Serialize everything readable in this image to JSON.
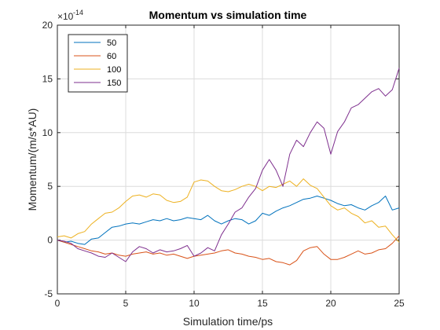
{
  "chart_data": {
    "type": "line",
    "title": "Momentum vs simulation time",
    "xlabel": "Simulation time/ps",
    "ylabel": "Momentum/(m/s*AU)",
    "exponent_base": "×10",
    "exponent_power": "-14",
    "xlim": [
      0,
      25
    ],
    "ylim": [
      -5,
      20
    ],
    "x_ticks": [
      "0",
      "5",
      "10",
      "15",
      "20",
      "25"
    ],
    "y_ticks": [
      "-5",
      "0",
      "5",
      "10",
      "15",
      "20"
    ],
    "grid": true,
    "legend_position": "top-left",
    "series": [
      {
        "name": "50",
        "color": "#0072BD",
        "x": [
          0,
          0.5,
          1,
          1.5,
          2,
          2.5,
          3,
          3.5,
          4,
          4.5,
          5,
          5.5,
          6,
          6.5,
          7,
          7.5,
          8,
          8.5,
          9,
          9.5,
          10,
          10.5,
          11,
          11.5,
          12,
          12.5,
          13,
          13.5,
          14,
          14.5,
          15,
          15.5,
          16,
          16.5,
          17,
          17.5,
          18,
          18.5,
          19,
          19.5,
          20,
          20.5,
          21,
          21.5,
          22,
          22.5,
          23,
          23.5,
          24,
          24.5,
          25
        ],
        "y": [
          0,
          -0.2,
          -0.1,
          -0.3,
          -0.4,
          0.1,
          0.2,
          0.7,
          1.2,
          1.3,
          1.5,
          1.6,
          1.5,
          1.7,
          1.9,
          1.8,
          2.0,
          1.8,
          1.9,
          2.1,
          2.0,
          1.9,
          2.3,
          1.8,
          1.5,
          1.8,
          2.0,
          1.9,
          1.5,
          1.8,
          2.5,
          2.3,
          2.7,
          3.0,
          3.2,
          3.5,
          3.8,
          3.9,
          4.1,
          3.9,
          3.7,
          3.4,
          3.2,
          3.3,
          3.0,
          2.8,
          3.2,
          3.5,
          4.1,
          2.8,
          3.0
        ]
      },
      {
        "name": "60",
        "color": "#D95319",
        "x": [
          0,
          0.5,
          1,
          1.5,
          2,
          2.5,
          3,
          3.5,
          4,
          4.5,
          5,
          5.5,
          6,
          6.5,
          7,
          7.5,
          8,
          8.5,
          9,
          9.5,
          10,
          10.5,
          11,
          11.5,
          12,
          12.5,
          13,
          13.5,
          14,
          14.5,
          15,
          15.5,
          16,
          16.5,
          17,
          17.5,
          18,
          18.5,
          19,
          19.5,
          20,
          20.5,
          21,
          21.5,
          22,
          22.5,
          23,
          23.5,
          24,
          24.5,
          25
        ],
        "y": [
          0,
          -0.2,
          -0.4,
          -0.6,
          -0.8,
          -1.0,
          -1.1,
          -1.3,
          -1.2,
          -1.4,
          -1.5,
          -1.3,
          -1.2,
          -1.1,
          -1.3,
          -1.2,
          -1.4,
          -1.3,
          -1.5,
          -1.7,
          -1.5,
          -1.4,
          -1.3,
          -1.2,
          -1.0,
          -0.9,
          -1.2,
          -1.3,
          -1.5,
          -1.6,
          -1.8,
          -1.7,
          -2.0,
          -2.1,
          -2.3,
          -1.9,
          -1.0,
          -0.7,
          -0.6,
          -1.3,
          -1.8,
          -1.8,
          -1.6,
          -1.3,
          -1.0,
          -1.3,
          -1.2,
          -0.9,
          -0.8,
          -0.3,
          0.4
        ]
      },
      {
        "name": "100",
        "color": "#EDB120",
        "x": [
          0,
          0.5,
          1,
          1.5,
          2,
          2.5,
          3,
          3.5,
          4,
          4.5,
          5,
          5.5,
          6,
          6.5,
          7,
          7.5,
          8,
          8.5,
          9,
          9.5,
          10,
          10.5,
          11,
          11.5,
          12,
          12.5,
          13,
          13.5,
          14,
          14.5,
          15,
          15.5,
          16,
          16.5,
          17,
          17.5,
          18,
          18.5,
          19,
          19.5,
          20,
          20.5,
          21,
          21.5,
          22,
          22.5,
          23,
          23.5,
          24,
          24.5,
          25
        ],
        "y": [
          0.3,
          0.4,
          0.2,
          0.6,
          0.8,
          1.5,
          2.0,
          2.5,
          2.6,
          3.0,
          3.6,
          4.1,
          4.2,
          4.0,
          4.3,
          4.2,
          3.7,
          3.5,
          3.6,
          4.0,
          5.4,
          5.6,
          5.5,
          5.0,
          4.6,
          4.5,
          4.7,
          5.0,
          5.2,
          5.0,
          4.6,
          5.0,
          4.9,
          5.2,
          5.5,
          5.0,
          5.7,
          5.1,
          4.8,
          4.0,
          3.2,
          2.8,
          3.0,
          2.5,
          2.2,
          1.6,
          1.8,
          1.2,
          1.3,
          0.5,
          -0.2
        ]
      },
      {
        "name": "150",
        "color": "#7E2F8E",
        "x": [
          0,
          0.5,
          1,
          1.5,
          2,
          2.5,
          3,
          3.5,
          4,
          4.5,
          5,
          5.5,
          6,
          6.5,
          7,
          7.5,
          8,
          8.5,
          9,
          9.5,
          10,
          10.5,
          11,
          11.5,
          12,
          12.5,
          13,
          13.5,
          14,
          14.5,
          15,
          15.5,
          16,
          16.5,
          17,
          17.5,
          18,
          18.5,
          19,
          19.5,
          20,
          20.5,
          21,
          21.5,
          22,
          22.5,
          23,
          23.5,
          24,
          24.5,
          25
        ],
        "y": [
          0,
          -0.1,
          -0.3,
          -0.8,
          -1.0,
          -1.2,
          -1.5,
          -1.6,
          -1.2,
          -1.6,
          -2.0,
          -1.1,
          -0.6,
          -0.8,
          -1.2,
          -0.9,
          -1.1,
          -1.0,
          -0.8,
          -0.5,
          -1.5,
          -1.2,
          -0.7,
          -1.0,
          0.5,
          1.5,
          2.6,
          3.0,
          4.0,
          4.8,
          6.5,
          7.5,
          6.5,
          5.0,
          8.0,
          9.3,
          8.7,
          10.0,
          11.0,
          10.4,
          8.0,
          10.1,
          11.0,
          12.3,
          12.6,
          13.2,
          13.8,
          14.1,
          13.4,
          14.0,
          16.0
        ]
      }
    ]
  }
}
